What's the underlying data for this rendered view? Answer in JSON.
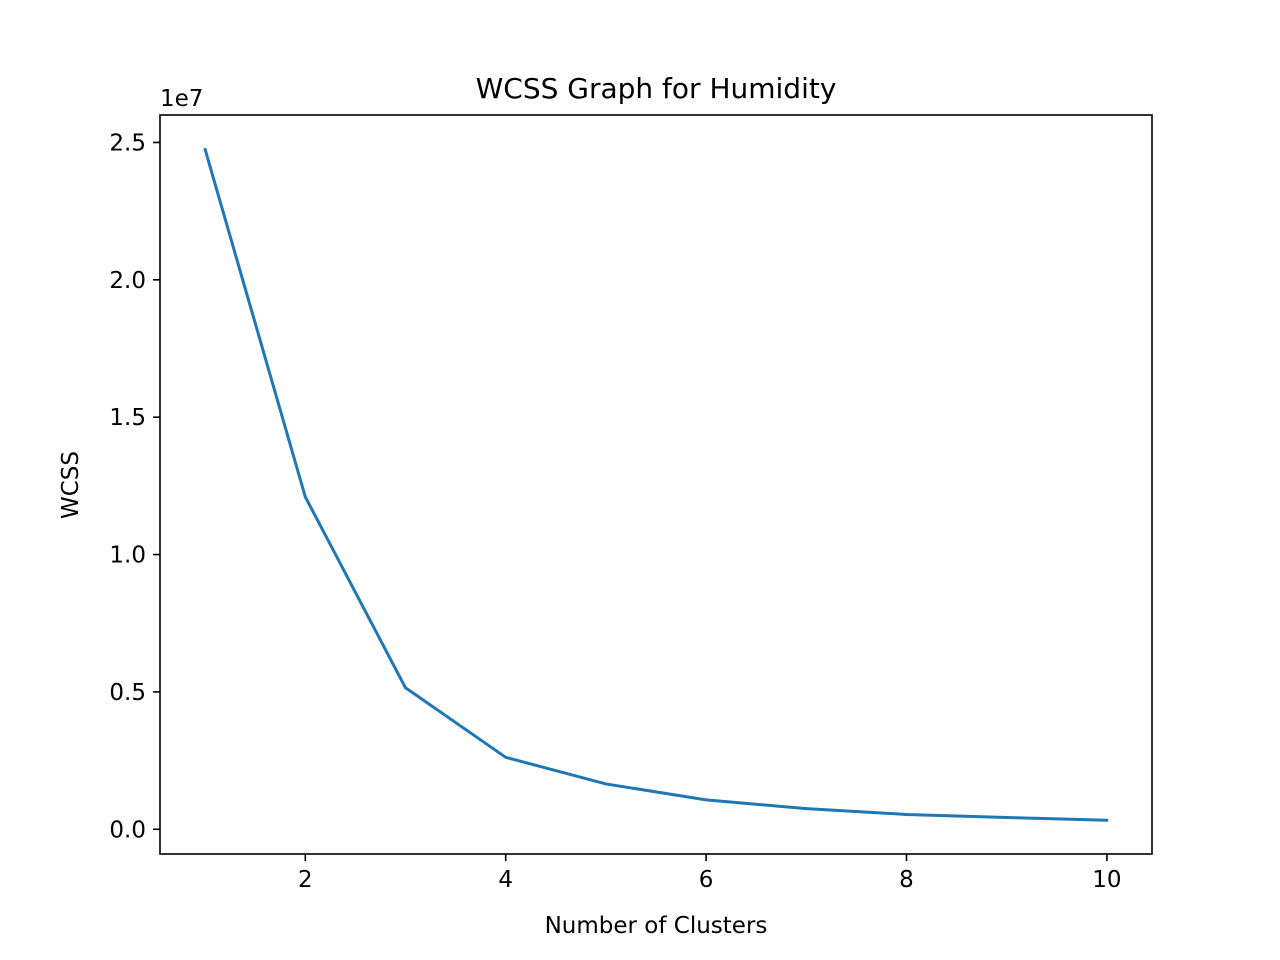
{
  "chart_data": {
    "type": "line",
    "title": "WCSS Graph for Humidity",
    "xlabel": "Number of Clusters",
    "ylabel": "WCSS",
    "y_offset_label": "1e7",
    "xlim": [
      0.55,
      10.45
    ],
    "ylim": [
      -0.09,
      2.6
    ],
    "x_ticks": [
      2,
      4,
      6,
      8,
      10
    ],
    "y_ticks": [
      0.0,
      0.5,
      1.0,
      1.5,
      2.0,
      2.5
    ],
    "y_tick_labels": [
      "0.0",
      "0.5",
      "1.0",
      "1.5",
      "2.0",
      "2.5"
    ],
    "y_scale_note": "values in units of 1e7",
    "grid": false,
    "line_color": "#1f77b4",
    "series": [
      {
        "x": [
          1,
          2,
          3,
          4,
          5,
          6,
          7,
          8,
          9,
          10
        ],
        "values": [
          2.475,
          1.21,
          0.515,
          0.262,
          0.165,
          0.107,
          0.075,
          0.054,
          0.043,
          0.033
        ]
      }
    ]
  }
}
